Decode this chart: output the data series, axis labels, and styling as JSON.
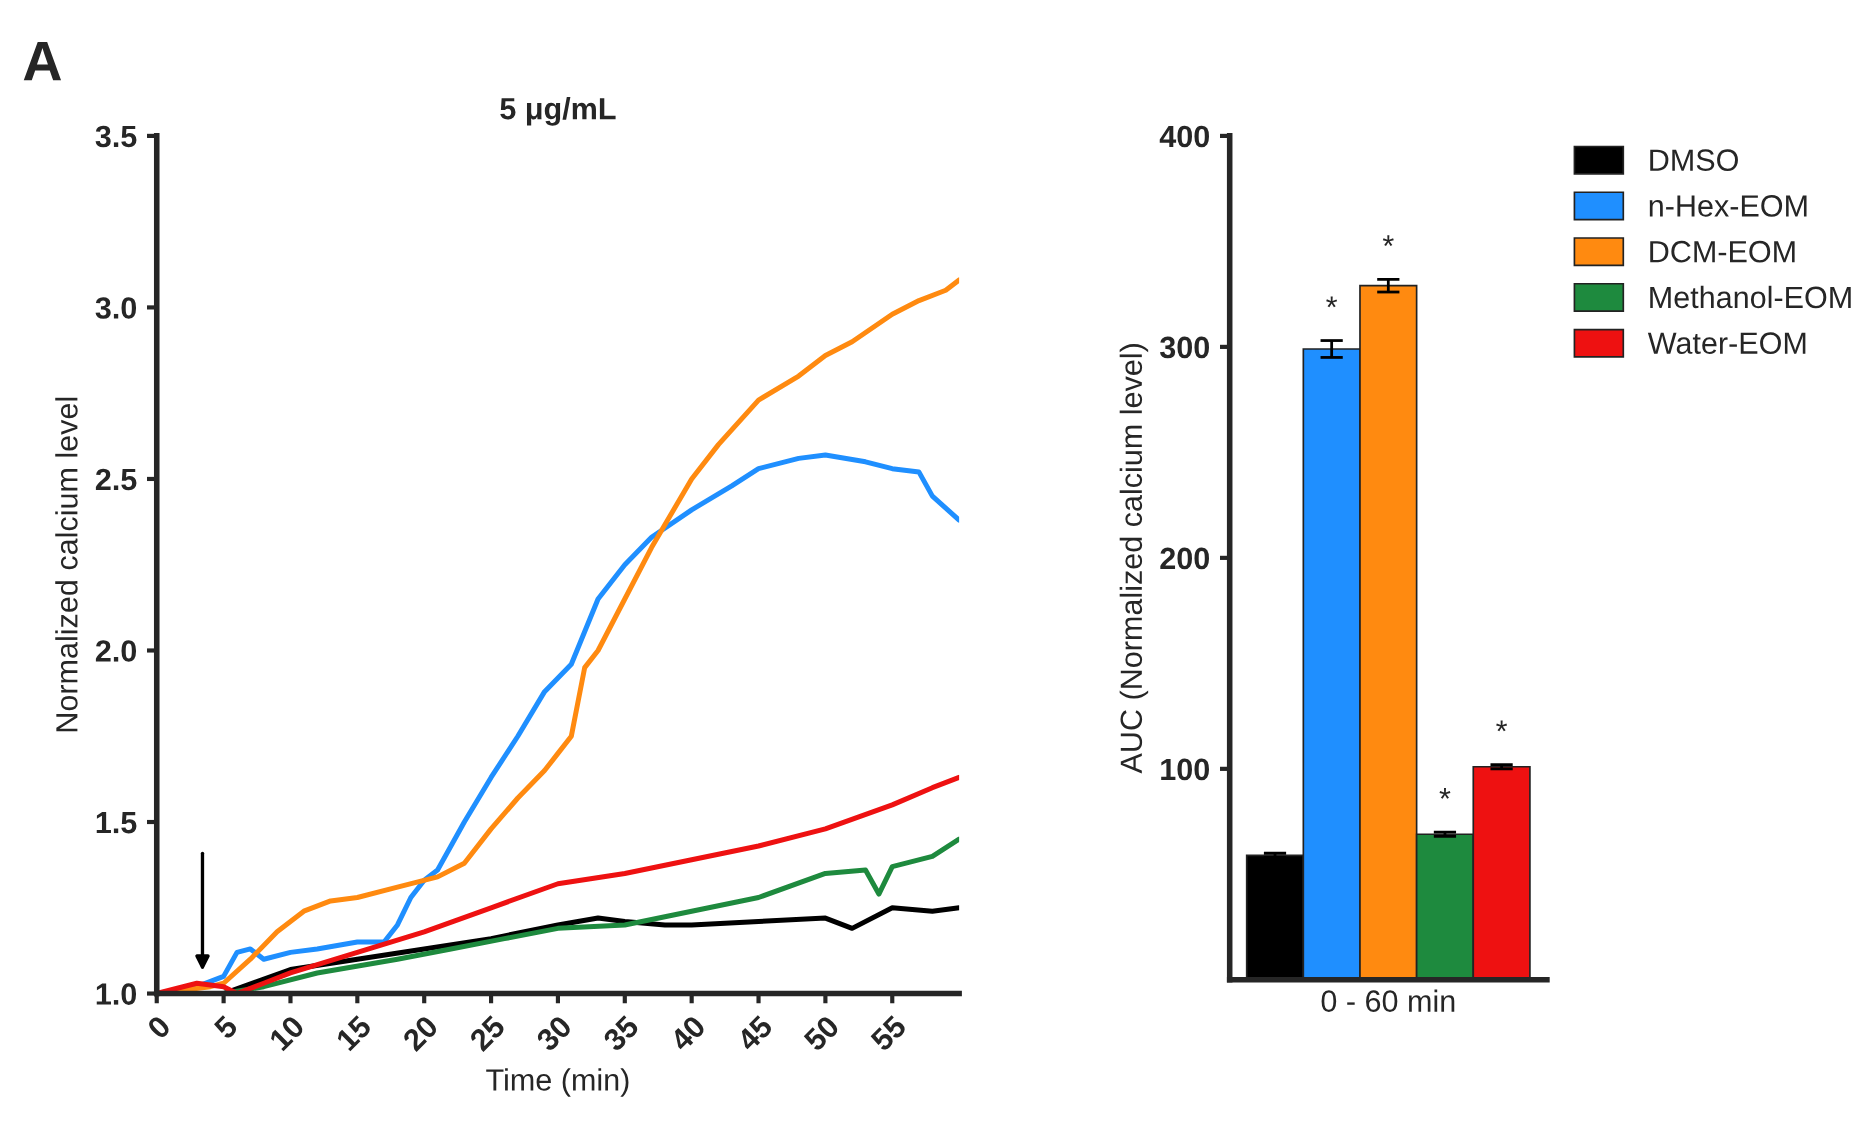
{
  "chart_data": [
    {
      "type": "line",
      "title": "5 μg/mL",
      "xlabel": "Time (min)",
      "ylabel": "Normalized calcium level",
      "xlim": [
        0,
        60
      ],
      "xticks": [
        0,
        5,
        10,
        15,
        20,
        25,
        30,
        35,
        40,
        45,
        50,
        55
      ],
      "ylim": [
        1.0,
        3.5
      ],
      "yticks": [
        {
          "value": 1.0,
          "label": "1.0"
        },
        {
          "value": 1.5,
          "label": "1.5"
        },
        {
          "value": 2.0,
          "label": "2.0"
        },
        {
          "value": 2.5,
          "label": "2.5"
        },
        {
          "value": 3.0,
          "label": "3.0"
        },
        {
          "value": 3.5,
          "label": "3.5"
        }
      ],
      "grid": false,
      "marker": "none",
      "line_style": "solid",
      "annotations": [
        "A"
      ],
      "series": [
        {
          "color": "#000000",
          "x": [
            0,
            5,
            10,
            15,
            20,
            25,
            30,
            33,
            35,
            38,
            40,
            45,
            50,
            52,
            55,
            58,
            60
          ],
          "values": [
            1.0,
            1.0,
            1.07,
            1.1,
            1.13,
            1.16,
            1.2,
            1.22,
            1.21,
            1.2,
            1.2,
            1.21,
            1.22,
            1.19,
            1.25,
            1.24,
            1.25
          ]
        },
        {
          "color": "#1f8fff",
          "x": [
            0,
            3,
            5,
            6,
            7,
            8,
            10,
            12,
            15,
            17,
            18,
            19,
            20,
            21,
            23,
            25,
            27,
            29,
            31,
            33,
            35,
            37,
            40,
            43,
            45,
            48,
            50,
            53,
            55,
            57,
            58,
            60
          ],
          "values": [
            1.0,
            1.02,
            1.05,
            1.12,
            1.13,
            1.1,
            1.12,
            1.13,
            1.15,
            1.15,
            1.2,
            1.28,
            1.33,
            1.36,
            1.5,
            1.63,
            1.75,
            1.88,
            1.96,
            2.15,
            2.25,
            2.33,
            2.41,
            2.48,
            2.53,
            2.56,
            2.57,
            2.55,
            2.53,
            2.52,
            2.45,
            2.38
          ]
        },
        {
          "color": "#ff8a10",
          "x": [
            0,
            4,
            5,
            7,
            9,
            11,
            13,
            15,
            18,
            21,
            23,
            25,
            27,
            29,
            30,
            31,
            32,
            33,
            35,
            37,
            40,
            42,
            45,
            48,
            50,
            52,
            55,
            57,
            59,
            60
          ],
          "values": [
            1.0,
            1.02,
            1.03,
            1.1,
            1.18,
            1.24,
            1.27,
            1.28,
            1.31,
            1.34,
            1.38,
            1.48,
            1.57,
            1.65,
            1.7,
            1.75,
            1.95,
            2.0,
            2.15,
            2.3,
            2.5,
            2.6,
            2.73,
            2.8,
            2.86,
            2.9,
            2.98,
            3.02,
            3.05,
            3.08
          ]
        },
        {
          "color": "#1e8a3e",
          "x": [
            0,
            5,
            8,
            12,
            18,
            22,
            26,
            30,
            35,
            40,
            45,
            50,
            53,
            54,
            55,
            58,
            60
          ],
          "values": [
            1.0,
            1.0,
            1.02,
            1.06,
            1.1,
            1.13,
            1.16,
            1.19,
            1.2,
            1.24,
            1.28,
            1.35,
            1.36,
            1.29,
            1.37,
            1.4,
            1.45
          ]
        },
        {
          "color": "#ee1111",
          "x": [
            0,
            3,
            5,
            6,
            8,
            10,
            15,
            20,
            25,
            30,
            35,
            40,
            45,
            50,
            55,
            58,
            60
          ],
          "values": [
            1.0,
            1.03,
            1.02,
            1.0,
            1.03,
            1.06,
            1.12,
            1.18,
            1.25,
            1.32,
            1.35,
            1.39,
            1.43,
            1.48,
            1.55,
            1.6,
            1.63
          ]
        }
      ]
    },
    {
      "type": "bar",
      "categories": [
        null,
        null,
        "0 - 60 min",
        null,
        null
      ],
      "ylabel": "AUC (Normalized calcium level)",
      "ylim": [
        0,
        400
      ],
      "yticks": [
        100,
        200,
        300,
        400
      ],
      "grid": false,
      "legend": "top right",
      "series": [
        {
          "name": "DMSO",
          "color": "#000000",
          "values": [
            59,
            null,
            null,
            null,
            null
          ],
          "errors": [
            1,
            null,
            null,
            null,
            null
          ]
        },
        {
          "name": "n-Hex-EOM",
          "color": "#1f8fff",
          "values": [
            null,
            299,
            null,
            null,
            null
          ],
          "errors": [
            null,
            4,
            null,
            null,
            null
          ],
          "value_labels": [
            null,
            "*",
            null,
            null,
            null
          ]
        },
        {
          "name": "DCM-EOM",
          "color": "#ff8a10",
          "values": [
            null,
            null,
            329,
            null,
            null
          ],
          "errors": [
            null,
            null,
            3,
            null,
            null
          ],
          "value_labels": [
            null,
            null,
            "*",
            null,
            null
          ]
        },
        {
          "name": "Methanol-EOM",
          "color": "#1e8a3e",
          "values": [
            null,
            null,
            null,
            69,
            null
          ],
          "errors": [
            null,
            null,
            null,
            1,
            null
          ],
          "value_labels": [
            null,
            null,
            null,
            "*",
            null
          ]
        },
        {
          "name": "Water-EOM",
          "color": "#ee1111",
          "values": [
            null,
            null,
            null,
            null,
            101
          ],
          "errors": [
            null,
            null,
            null,
            null,
            1
          ],
          "value_labels": [
            null,
            null,
            null,
            null,
            "*"
          ]
        }
      ]
    }
  ]
}
